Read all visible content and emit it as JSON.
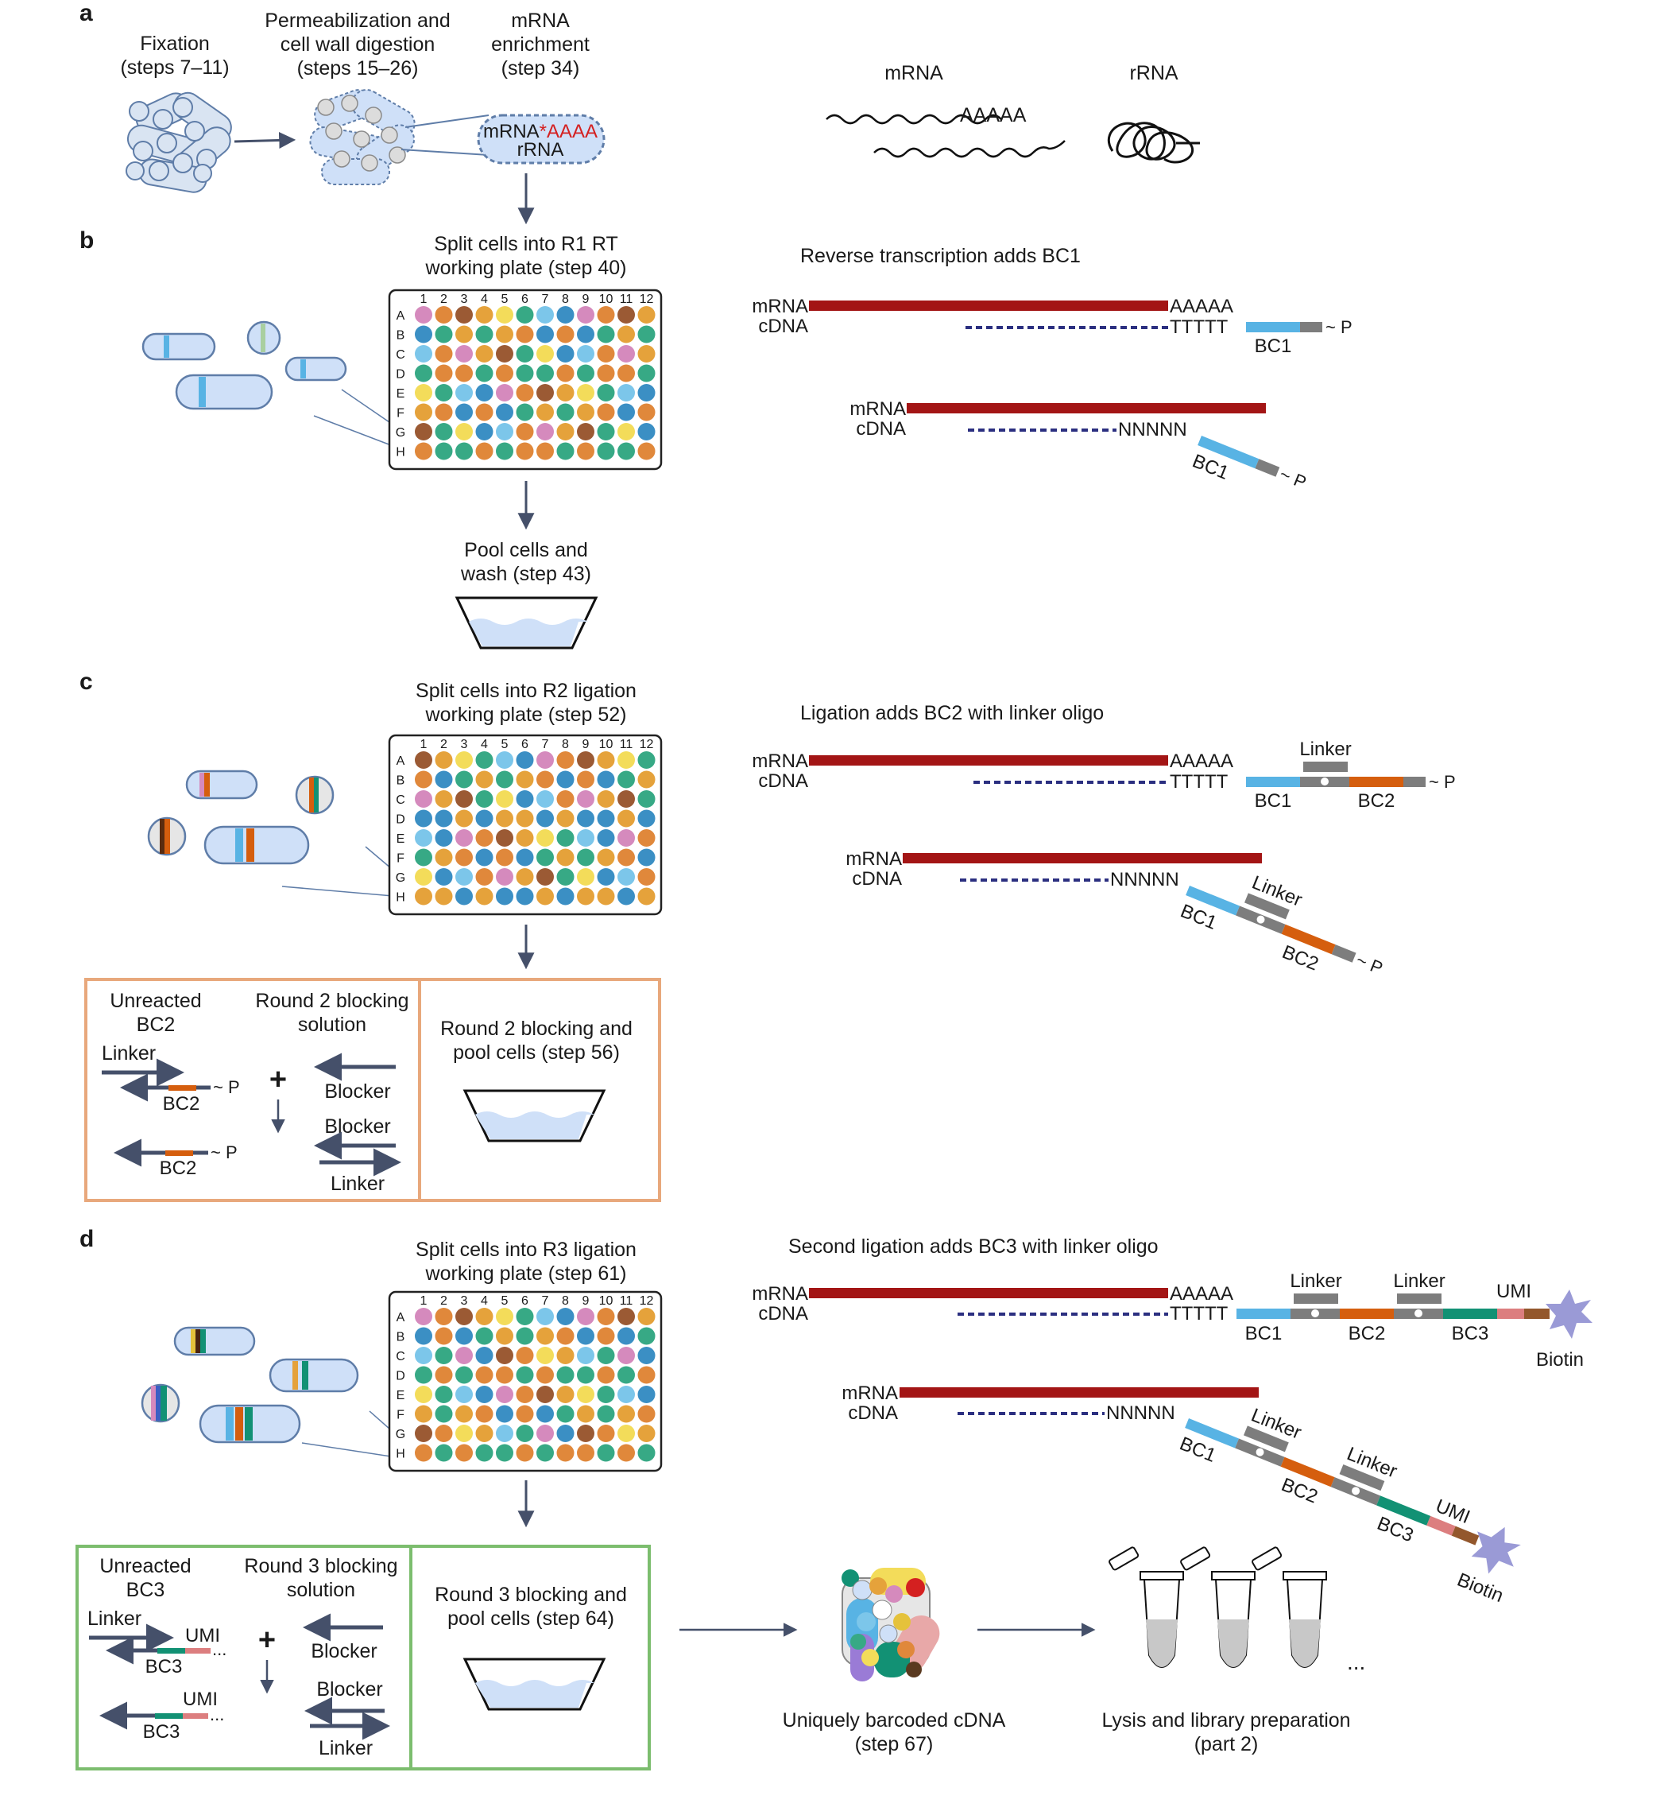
{
  "colors": {
    "mrna": "#a31515",
    "cdna": "#2b2f80",
    "bc1": "#58b3e4",
    "bc2": "#d55e0e",
    "bc3": "#129174",
    "linker": "#7d7d7d",
    "umi": "#dc7e7f",
    "umi_tail": "#93572c",
    "biotin": "#9a9ad6",
    "arrow": "#45506a",
    "cell_fill": "#cfe0f8",
    "cell_stroke": "#5f7da8",
    "panel_c_border": "#e8a87c",
    "panel_d_border": "#7cbd6e",
    "polya": "#d42020",
    "well_palette": [
      "#7cc6ea",
      "#e5a23b",
      "#d58abd",
      "#37a985",
      "#9b5a34",
      "#3b8fc4",
      "#f3dc5a",
      "#e0883b"
    ]
  },
  "panels": {
    "a": {
      "letter": "a",
      "fixation": [
        "Fixation",
        "(steps 7–11)"
      ],
      "permeabilization": [
        "Permeabilization and",
        "cell wall digestion",
        "(steps 15–26)"
      ],
      "enrichment": [
        "mRNA",
        "enrichment",
        "(step 34)"
      ],
      "capsule_mrna": "mRNA",
      "capsule_star": "*",
      "capsule_polya": "AAAA",
      "capsule_rrna": "rRNA",
      "legend_mrna": "mRNA",
      "legend_polya": "AAAAA",
      "legend_rrna": "rRNA"
    },
    "b": {
      "letter": "b",
      "plate_title": [
        "Split cells into R1 RT",
        "working plate (step 40)"
      ],
      "pool": [
        "Pool cells and",
        "wash (step 43)"
      ],
      "scheme_title": "Reverse transcription adds BC1",
      "mrna": "mRNA",
      "cdna": "cDNA",
      "polya": "AAAAA",
      "polyt": "TTTTT",
      "random": "NNNNN",
      "bc1": "BC1",
      "phos": "~ P"
    },
    "c": {
      "letter": "c",
      "plate_title": [
        "Split cells into R2 ligation",
        "working plate (step 52)"
      ],
      "scheme_title": "Ligation adds BC2 with linker oligo",
      "mrna": "mRNA",
      "cdna": "cDNA",
      "polya": "AAAAA",
      "polyt": "TTTTT",
      "random": "NNNNN",
      "linker": "Linker",
      "bc1": "BC1",
      "bc2": "BC2",
      "phos": "~ P",
      "unreacted": [
        "Unreacted",
        "BC2"
      ],
      "blocking_solution": [
        "Round 2 blocking",
        "solution"
      ],
      "box_linker": "Linker",
      "box_bc2": "BC2",
      "box_phos": "~ P",
      "plus": "+",
      "blocker_1": "Blocker",
      "blocker_2": "Blocker",
      "box_linker_2": "Linker",
      "box_bc2_2": "BC2",
      "box_phos_2": "~ P",
      "blocking_pool": [
        "Round 2 blocking and",
        "pool cells (step 56)"
      ]
    },
    "d": {
      "letter": "d",
      "plate_title": [
        "Split cells into R3 ligation",
        "working plate (step 61)"
      ],
      "scheme_title": "Second ligation adds BC3 with linker oligo",
      "mrna": "mRNA",
      "cdna": "cDNA",
      "polya": "AAAAA",
      "polyt": "TTTTT",
      "random": "NNNNN",
      "linker": "Linker",
      "bc1": "BC1",
      "bc2": "BC2",
      "bc3": "BC3",
      "umi": "UMI",
      "biotin": "Biotin",
      "unreacted": [
        "Unreacted",
        "BC3"
      ],
      "blocking_solution": [
        "Round 3 blocking",
        "solution"
      ],
      "box_linker": "Linker",
      "box_umi": "UMI",
      "box_dots": "...",
      "box_bc3": "BC3",
      "plus": "+",
      "blocker_1": "Blocker",
      "blocker_2": "Blocker",
      "box_linker_2": "Linker",
      "box_umi_2": "UMI",
      "box_dots_2": "...",
      "box_bc3_2": "BC3",
      "blocking_pool": [
        "Round 3 blocking and",
        "pool cells (step 64)"
      ],
      "barcoded": [
        "Uniquely barcoded cDNA",
        "(step 67)"
      ],
      "lysis": [
        "Lysis and library preparation",
        "(part 2)"
      ],
      "tube_dots": "..."
    }
  },
  "plate": {
    "cols": [
      "1",
      "2",
      "3",
      "4",
      "5",
      "6",
      "7",
      "8",
      "9",
      "10",
      "11",
      "12"
    ],
    "rows": [
      "A",
      "B",
      "C",
      "D",
      "E",
      "F",
      "G",
      "H"
    ]
  }
}
